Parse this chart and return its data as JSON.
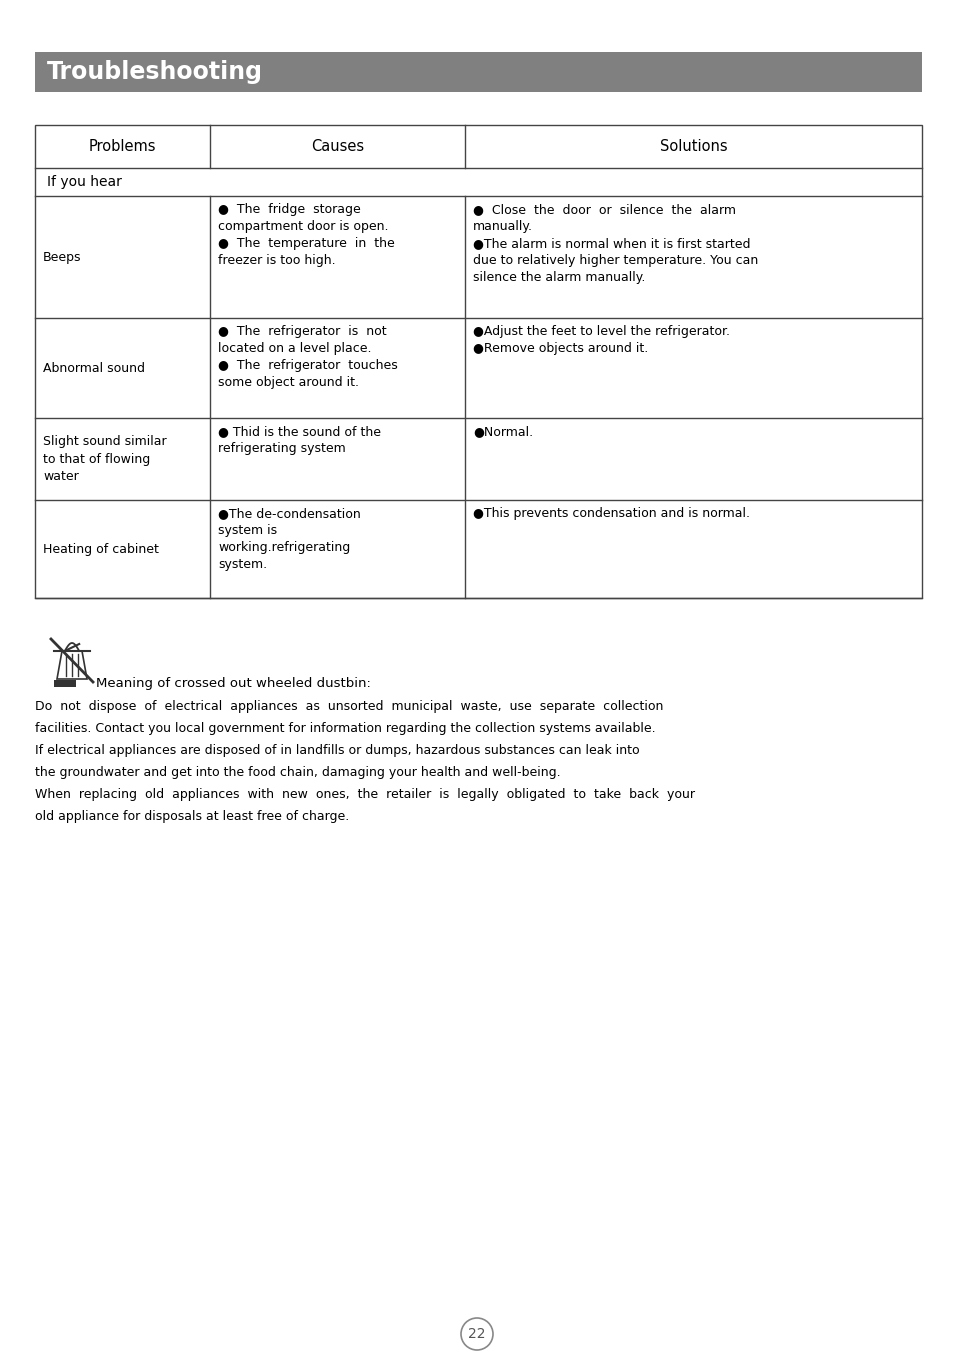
{
  "title": "Troubleshooting",
  "title_bg_color": "#808080",
  "title_text_color": "#ffffff",
  "page_bg_color": "#ffffff",
  "page_number": "22",
  "table_headers": [
    "Problems",
    "Causes",
    "Solutions"
  ],
  "section_label": "If you hear",
  "rows": [
    {
      "problem": "Beeps",
      "causes": "●  The  fridge  storage\ncompartment door is open.\n●  The  temperature  in  the\nfreezer is too high.",
      "solutions": "●  Close  the  door  or  silence  the  alarm\nmanually.\n●The alarm is normal when it is first started\ndue to relatively higher temperature. You can\nsilence the alarm manually."
    },
    {
      "problem": "Abnormal sound",
      "causes": "●  The  refrigerator  is  not\nlocated on a level place.\n●  The  refrigerator  touches\nsome object around it.",
      "solutions": "●Adjust the feet to level the refrigerator.\n●Remove objects around it."
    },
    {
      "problem": "Slight sound similar\nto that of flowing\nwater",
      "causes": "● Thid is the sound of the\nrefrigerating system",
      "solutions": "●Normal."
    },
    {
      "problem": "Heating of cabinet",
      "causes": "●The de-condensation\nsystem is\nworking.refrigerating\nsystem.",
      "solutions": "●This prevents condensation and is normal."
    }
  ],
  "footer_line0": "Meaning of crossed out wheeled dustbin:",
  "footer_lines": [
    "Do  not  dispose  of  electrical  appliances  as  unsorted  municipal  waste,  use  separate  collection",
    "facilities. Contact you local government for information regarding the collection systems available.",
    "If electrical appliances are disposed of in landfills or dumps, hazardous substances can leak into",
    "the groundwater and get into the food chain, damaging your health and well-being.",
    "When  replacing  old  appliances  with  new  ones,  the  retailer  is  legally  obligated  to  take  back  your",
    "old appliance for disposals at least free of charge."
  ]
}
